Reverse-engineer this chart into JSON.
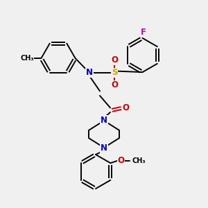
{
  "background_color": "#f0f0f0",
  "atom_colors": {
    "C": "#000000",
    "N": "#0000cc",
    "O": "#cc0000",
    "S": "#ccaa00",
    "F": "#cc00cc"
  },
  "bond_lw": 1.4,
  "font_size": 8.5,
  "fig_size": [
    3.0,
    3.0
  ],
  "dpi": 100,
  "xlim": [
    0,
    10
  ],
  "ylim": [
    0,
    10
  ]
}
